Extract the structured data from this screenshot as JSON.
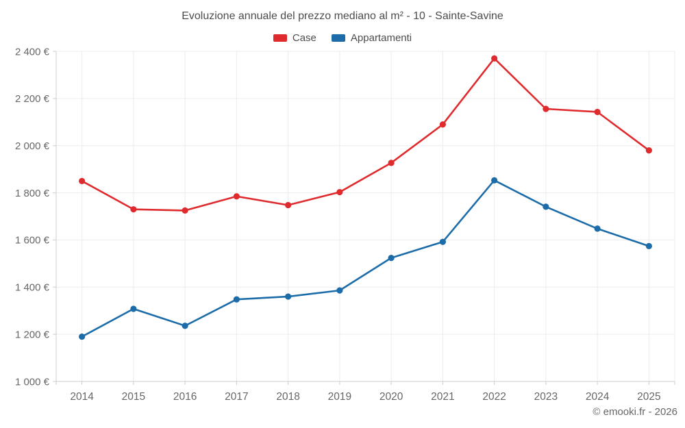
{
  "attribution": "© emooki.fr - 2026",
  "chart_data": {
    "type": "line",
    "title": "Evoluzione annuale del prezzo mediano al m² - 10 - Sainte-Savine",
    "categories": [
      "2014",
      "2015",
      "2016",
      "2017",
      "2018",
      "2019",
      "2020",
      "2021",
      "2022",
      "2023",
      "2024",
      "2025"
    ],
    "series": [
      {
        "name": "Case",
        "color": "#e02b2e",
        "values": [
          1850,
          1730,
          1725,
          1785,
          1748,
          1803,
          1927,
          2090,
          2370,
          2156,
          2143,
          1980
        ]
      },
      {
        "name": "Appartamenti",
        "color": "#1b6ca8",
        "values": [
          1190,
          1308,
          1236,
          1348,
          1360,
          1386,
          1524,
          1592,
          1853,
          1741,
          1648,
          1574
        ]
      }
    ],
    "ylabel": "",
    "xlabel": "",
    "ylim": [
      1000,
      2400
    ],
    "y_tick_step": 200,
    "y_tick_labels": [
      "1 000 €",
      "1 200 €",
      "1 400 €",
      "1 600 €",
      "1 800 €",
      "2 000 €",
      "2 200 €",
      "2 400 €"
    ],
    "grid": true,
    "legend_position": "top",
    "colors": {
      "grid_line": "#ececec",
      "axis_line": "#cccccc",
      "tick_text": "#666666",
      "title_text": "#4c4c4c",
      "background": "#ffffff"
    }
  }
}
